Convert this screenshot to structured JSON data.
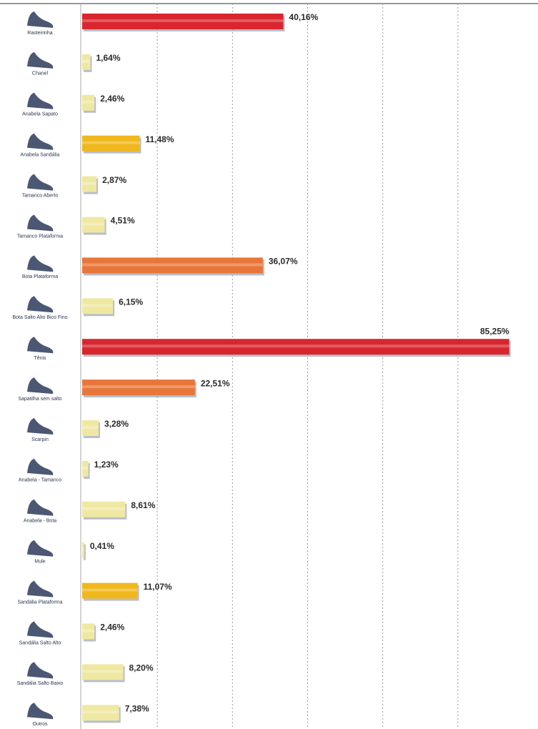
{
  "chart_data": {
    "type": "bar",
    "orientation": "horizontal",
    "categories": [
      "Rasteirinha",
      "Chanel",
      "Anabela Sapato",
      "Anabela Sandália",
      "Tamanco Aberto",
      "Tamanco Plataforma",
      "Bota Plataforma",
      "Bota Salto Alto Bico Fino",
      "Tênis",
      "Sapatilha sem salto",
      "Scarpin",
      "Anabela - Tamanco",
      "Anabela - Bota",
      "Mule",
      "Sandália Plataforma",
      "Sandália Salto Alto",
      "Sandália Salto Baixo",
      "Outros"
    ],
    "values": [
      40.16,
      1.64,
      2.46,
      11.48,
      2.87,
      4.51,
      36.07,
      6.15,
      85.25,
      22.51,
      3.28,
      1.23,
      8.61,
      0.41,
      11.07,
      2.46,
      8.2,
      7.38
    ],
    "value_labels": [
      "40,16%",
      "1,64%",
      "2,46%",
      "11,48%",
      "2,87%",
      "4,51%",
      "36,07%",
      "6,15%",
      "85,25%",
      "22,51%",
      "3,28%",
      "1,23%",
      "8,61%",
      "0,41%",
      "11,07%",
      "2,46%",
      "8,20%",
      "7,38%"
    ],
    "colors": [
      "#d8262f",
      "#efe8a2",
      "#efe8a2",
      "#f0b81c",
      "#efe8a2",
      "#efe8a2",
      "#e8763a",
      "#efe8a2",
      "#d8262f",
      "#e8763a",
      "#efe8a2",
      "#efe8a2",
      "#efe8a2",
      "#efe8a2",
      "#f0b81c",
      "#efe8a2",
      "#efe8a2",
      "#efe8a2"
    ],
    "xlim": [
      0,
      91
    ],
    "xticks": [
      15,
      30,
      45,
      60,
      75
    ],
    "grid": true
  }
}
